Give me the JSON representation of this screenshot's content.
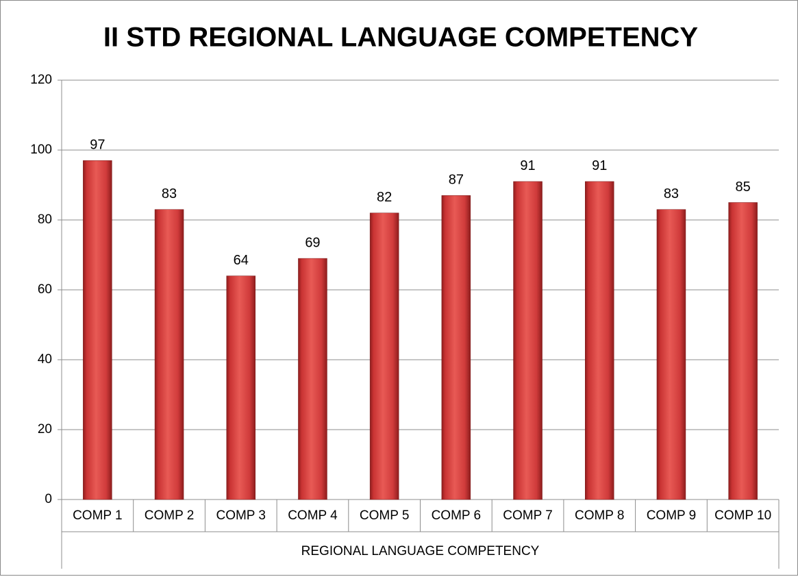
{
  "chart_data": {
    "type": "bar",
    "title": "II STD REGIONAL LANGUAGE COMPETENCY",
    "x_label": "REGIONAL LANGUAGE COMPETENCY",
    "categories": [
      "COMP 1",
      "COMP 2",
      "COMP 3",
      "COMP 4",
      "COMP 5",
      "COMP 6",
      "COMP 7",
      "COMP 8",
      "COMP 9",
      "COMP 10"
    ],
    "values": [
      97,
      83,
      64,
      69,
      82,
      87,
      91,
      91,
      83,
      85
    ],
    "color": "#d63c3c",
    "ylim": [
      0,
      120
    ],
    "yticks": [
      0,
      20,
      40,
      60,
      80,
      100,
      120
    ],
    "grid": true
  }
}
